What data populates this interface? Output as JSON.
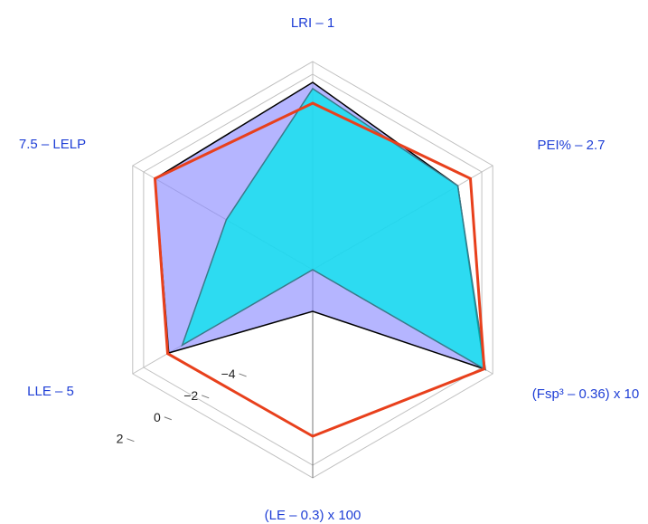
{
  "chart_data": {
    "type": "radar",
    "axes": [
      {
        "label": "LRI – 1"
      },
      {
        "label": "PEI% – 2.7"
      },
      {
        "label": "(Fsp³ – 0.36) x 10"
      },
      {
        "label": "(LE – 0.3) x 100"
      },
      {
        "label": "LLE – 5"
      },
      {
        "label": "7.5 – LELP"
      }
    ],
    "radial_ticks": [
      -4,
      -2,
      0,
      2
    ],
    "rlim": [
      -6,
      4
    ],
    "grid": true,
    "series": [
      {
        "color": "#8888ff",
        "fill_opacity": 0.62,
        "edge": "#000000",
        "values": [
          3.0,
          2.06,
          3.53,
          -4.0,
          2.0,
          2.76
        ]
      },
      {
        "color": "#00e8ec",
        "fill_opacity": 0.75,
        "edge": "#3a7a8a",
        "values": [
          2.7,
          2.06,
          3.6,
          -6.0,
          1.25,
          -1.2
        ]
      },
      {
        "color": "#e8401c",
        "fill_opacity": 0,
        "edge": "#e8401c",
        "values": [
          2.0,
          2.76,
          3.53,
          2.0,
          2.06,
          2.76
        ]
      }
    ],
    "colors": {
      "label": "#1f3fd6",
      "grid": "#c0c0c0",
      "axis": "#777777"
    }
  }
}
